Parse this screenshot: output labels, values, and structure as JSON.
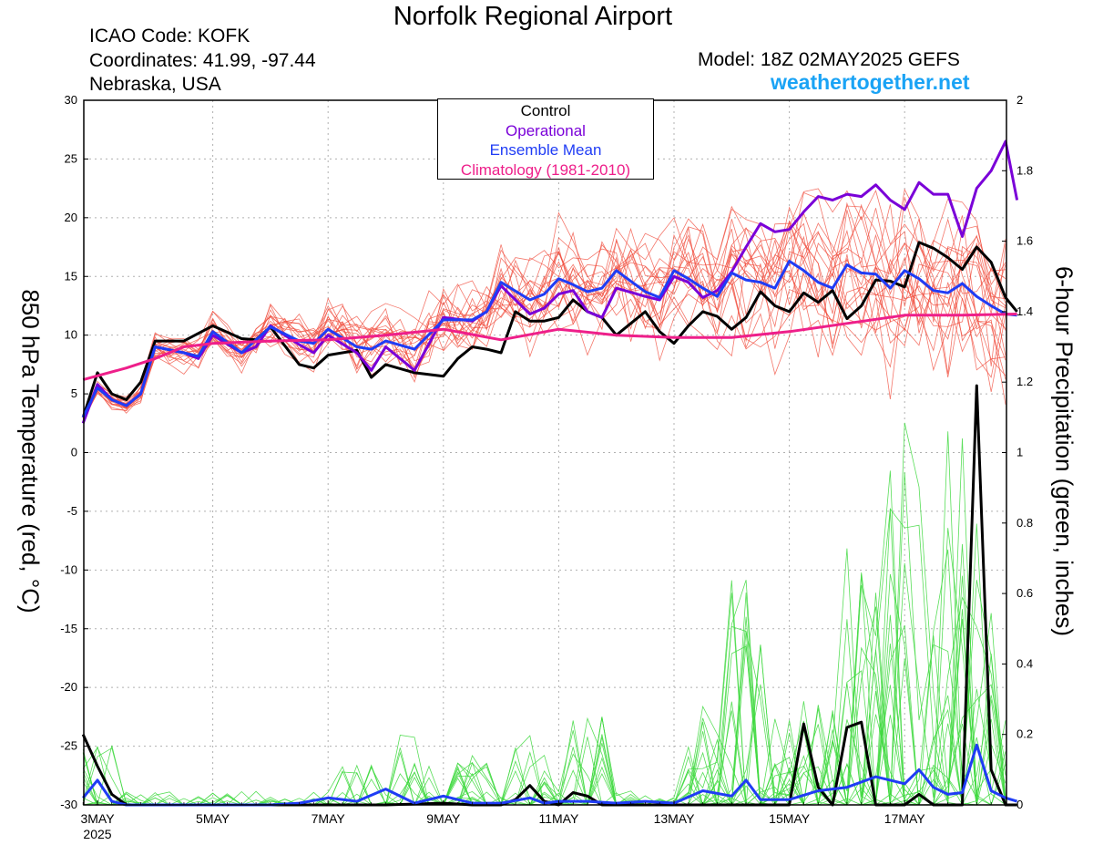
{
  "header": {
    "title": "Norfolk Regional Airport",
    "icao": "ICAO Code: KOFK",
    "coordinates": "Coordinates: 41.99, -97.44",
    "region": "Nebraska, USA",
    "model": "Model: 18Z 02MAY2025 GEFS",
    "site": "weathertogether.net"
  },
  "colors": {
    "control": "#000000",
    "operational": "#7a00d8",
    "ensemble_mean": "#1f3cf5",
    "climatology": "#ee1f8a",
    "members_temp": "#f04a3a",
    "members_precip": "#3cd83c",
    "site": "#1aa3f5"
  },
  "chart_data": {
    "type": "line",
    "title": "Norfolk Regional Airport",
    "ylabel": "850 hPa Temperature (red, °C)",
    "y2label": "6-hour Precipitation (green, inches)",
    "ylim": [
      -30,
      30
    ],
    "y2lim": [
      0,
      2
    ],
    "yticks": [
      "30",
      "25",
      "20",
      "15",
      "10",
      "5",
      "0",
      "-5",
      "-10",
      "-15",
      "-20",
      "-25",
      "-30"
    ],
    "y2ticks": [
      "2",
      "1.8",
      "1.6",
      "1.4",
      "1.2",
      "1",
      "0.8",
      "0.6",
      "0.4",
      "0.2",
      "0"
    ],
    "xlim": [
      0,
      15.95
    ],
    "xticks": [
      {
        "day": 0,
        "label": "3MAY",
        "sub": "2025"
      },
      {
        "day": 2,
        "label": "5MAY"
      },
      {
        "day": 4,
        "label": "7MAY"
      },
      {
        "day": 6,
        "label": "9MAY"
      },
      {
        "day": 8,
        "label": "11MAY"
      },
      {
        "day": 10,
        "label": "13MAY"
      },
      {
        "day": 12,
        "label": "15MAY"
      },
      {
        "day": 14,
        "label": "17MAY"
      }
    ],
    "grid": true,
    "legend": {
      "position": "top-center",
      "entries": [
        {
          "label": "Control",
          "color": "#000000"
        },
        {
          "label": "Operational",
          "color": "#7a00d8"
        },
        {
          "label": "Ensemble Mean",
          "color": "#1f3cf5"
        },
        {
          "label": "Climatology (1981-2010)",
          "color": "#ee1f8a"
        }
      ]
    },
    "temperature_series": [
      {
        "name": "Control",
        "points": [
          [
            -0.25,
            3
          ],
          [
            0,
            6.8
          ],
          [
            0.25,
            5
          ],
          [
            0.5,
            4.5
          ],
          [
            0.75,
            6
          ],
          [
            1,
            9.5
          ],
          [
            1.5,
            9.5
          ],
          [
            2,
            10.8
          ],
          [
            2.5,
            9.7
          ],
          [
            2.75,
            9.6
          ],
          [
            3,
            10.7
          ],
          [
            3.5,
            7.5
          ],
          [
            3.75,
            7.2
          ],
          [
            4,
            8.3
          ],
          [
            4.5,
            8.7
          ],
          [
            4.75,
            6.4
          ],
          [
            5,
            7.5
          ],
          [
            5.5,
            6.8
          ],
          [
            6,
            6.5
          ],
          [
            6.25,
            8
          ],
          [
            6.5,
            9
          ],
          [
            6.75,
            8.8
          ],
          [
            7,
            8.5
          ],
          [
            7.25,
            12
          ],
          [
            7.5,
            11.2
          ],
          [
            7.75,
            11.2
          ],
          [
            8,
            11.5
          ],
          [
            8.25,
            13
          ],
          [
            8.5,
            12
          ],
          [
            8.75,
            11.5
          ],
          [
            9,
            10
          ],
          [
            9.25,
            11
          ],
          [
            9.5,
            12
          ],
          [
            9.75,
            10.3
          ],
          [
            10,
            9.3
          ],
          [
            10.25,
            10.8
          ],
          [
            10.5,
            12
          ],
          [
            10.75,
            11.6
          ],
          [
            11,
            10.5
          ],
          [
            11.25,
            11.5
          ],
          [
            11.5,
            13.7
          ],
          [
            11.75,
            12.5
          ],
          [
            12,
            12
          ],
          [
            12.25,
            13.6
          ],
          [
            12.5,
            12.8
          ],
          [
            12.75,
            13.8
          ],
          [
            13,
            11.4
          ],
          [
            13.25,
            12.5
          ],
          [
            13.5,
            14.7
          ],
          [
            13.75,
            14.6
          ],
          [
            14,
            14.1
          ],
          [
            14.25,
            17.9
          ],
          [
            14.5,
            17.4
          ],
          [
            14.75,
            16.6
          ],
          [
            15,
            15.6
          ],
          [
            15.25,
            17.5
          ],
          [
            15.5,
            16.2
          ],
          [
            15.75,
            13.2
          ],
          [
            15.95,
            12
          ]
        ]
      },
      {
        "name": "Operational",
        "points": [
          [
            -0.25,
            2.5
          ],
          [
            0,
            5.8
          ],
          [
            0.25,
            4.5
          ],
          [
            0.5,
            4
          ],
          [
            0.75,
            5
          ],
          [
            1,
            9
          ],
          [
            1.5,
            8.5
          ],
          [
            1.75,
            8
          ],
          [
            2,
            10
          ],
          [
            2.5,
            8.5
          ],
          [
            2.75,
            9
          ],
          [
            3,
            10.8
          ],
          [
            3.5,
            9.2
          ],
          [
            3.75,
            8.5
          ],
          [
            4,
            10
          ],
          [
            4.5,
            8.5
          ],
          [
            4.75,
            7
          ],
          [
            5,
            9
          ],
          [
            5.5,
            7
          ],
          [
            6,
            11.5
          ],
          [
            6.5,
            11.2
          ],
          [
            6.75,
            12
          ],
          [
            7,
            14.2
          ],
          [
            7.5,
            11.8
          ],
          [
            7.75,
            12.3
          ],
          [
            8,
            13.5
          ],
          [
            8.25,
            13.8
          ],
          [
            8.5,
            12
          ],
          [
            8.75,
            11.5
          ],
          [
            9,
            14
          ],
          [
            9.5,
            13.3
          ],
          [
            9.75,
            13
          ],
          [
            10,
            15
          ],
          [
            10.25,
            14.5
          ],
          [
            10.5,
            13.2
          ],
          [
            10.75,
            13.8
          ],
          [
            11,
            15.4
          ],
          [
            11.25,
            17.5
          ],
          [
            11.5,
            19.5
          ],
          [
            11.75,
            18.8
          ],
          [
            12,
            19
          ],
          [
            12.25,
            20.5
          ],
          [
            12.5,
            21.8
          ],
          [
            12.75,
            21.5
          ],
          [
            13,
            22
          ],
          [
            13.25,
            21.8
          ],
          [
            13.5,
            22.8
          ],
          [
            13.75,
            21.5
          ],
          [
            14,
            20.7
          ],
          [
            14.25,
            23
          ],
          [
            14.5,
            22
          ],
          [
            14.75,
            22
          ],
          [
            15,
            18.4
          ],
          [
            15.25,
            22.5
          ],
          [
            15.5,
            24
          ],
          [
            15.75,
            26.5
          ],
          [
            15.95,
            21.5
          ]
        ]
      },
      {
        "name": "Ensemble Mean",
        "points": [
          [
            -0.25,
            3
          ],
          [
            0,
            5.5
          ],
          [
            0.25,
            4.5
          ],
          [
            0.5,
            4
          ],
          [
            0.75,
            5
          ],
          [
            1,
            9
          ],
          [
            1.5,
            8.5
          ],
          [
            1.75,
            8.2
          ],
          [
            2,
            10.3
          ],
          [
            2.5,
            8.5
          ],
          [
            3,
            10.7
          ],
          [
            3.5,
            9.5
          ],
          [
            3.75,
            9.3
          ],
          [
            4,
            10.5
          ],
          [
            4.5,
            9
          ],
          [
            4.75,
            8.8
          ],
          [
            5,
            9.5
          ],
          [
            5.5,
            8.8
          ],
          [
            6,
            11.3
          ],
          [
            6.5,
            11.3
          ],
          [
            6.75,
            12
          ],
          [
            7,
            14.5
          ],
          [
            7.5,
            13
          ],
          [
            7.75,
            13.5
          ],
          [
            8,
            14.8
          ],
          [
            8.25,
            14.3
          ],
          [
            8.5,
            13.7
          ],
          [
            8.75,
            14
          ],
          [
            9,
            15.5
          ],
          [
            9.25,
            14.6
          ],
          [
            9.5,
            13.7
          ],
          [
            9.75,
            13.2
          ],
          [
            10,
            15.5
          ],
          [
            10.25,
            14.8
          ],
          [
            10.5,
            14
          ],
          [
            10.75,
            13.3
          ],
          [
            11,
            15.3
          ],
          [
            11.25,
            14.7
          ],
          [
            11.5,
            14.5
          ],
          [
            11.75,
            14
          ],
          [
            12,
            16.3
          ],
          [
            12.25,
            15.5
          ],
          [
            12.5,
            14.5
          ],
          [
            12.75,
            14
          ],
          [
            13,
            16
          ],
          [
            13.25,
            15.3
          ],
          [
            13.5,
            15.2
          ],
          [
            13.75,
            14
          ],
          [
            14,
            15.5
          ],
          [
            14.25,
            14.8
          ],
          [
            14.5,
            13.8
          ],
          [
            14.75,
            13.6
          ],
          [
            15,
            14.4
          ],
          [
            15.25,
            13.3
          ],
          [
            15.5,
            12.5
          ],
          [
            15.75,
            11.8
          ],
          [
            15.95,
            11.7
          ]
        ]
      },
      {
        "name": "Climatology (1981-2010)",
        "points": [
          [
            -0.25,
            6.2
          ],
          [
            0.5,
            7.2
          ],
          [
            1,
            8
          ],
          [
            1.5,
            9
          ],
          [
            2,
            9.3
          ],
          [
            3,
            9.5
          ],
          [
            4,
            9.6
          ],
          [
            5,
            10
          ],
          [
            6,
            10.5
          ],
          [
            7,
            9.6
          ],
          [
            8,
            10.5
          ],
          [
            9,
            10
          ],
          [
            10,
            9.8
          ],
          [
            11,
            9.8
          ],
          [
            12,
            10.3
          ],
          [
            13,
            11
          ],
          [
            14,
            11.7
          ],
          [
            15,
            11.7
          ],
          [
            15.95,
            11.8
          ]
        ]
      }
    ],
    "precipitation_series": [
      {
        "name": "Control",
        "points": [
          [
            -0.25,
            0.2
          ],
          [
            0,
            0.11
          ],
          [
            0.25,
            0.03
          ],
          [
            0.5,
            0
          ],
          [
            3,
            0
          ],
          [
            4,
            0
          ],
          [
            5,
            0
          ],
          [
            6,
            0.005
          ],
          [
            6.5,
            0
          ],
          [
            7,
            0
          ],
          [
            7.25,
            0.015
          ],
          [
            7.5,
            0.055
          ],
          [
            7.75,
            0.01
          ],
          [
            8,
            0
          ],
          [
            8.25,
            0.035
          ],
          [
            8.5,
            0.025
          ],
          [
            8.75,
            0
          ],
          [
            10,
            0
          ],
          [
            11,
            0
          ],
          [
            11.5,
            0
          ],
          [
            12,
            0
          ],
          [
            12.25,
            0.23
          ],
          [
            12.5,
            0.05
          ],
          [
            12.75,
            0
          ],
          [
            13,
            0.22
          ],
          [
            13.25,
            0.235
          ],
          [
            13.5,
            0
          ],
          [
            14,
            0
          ],
          [
            14.25,
            0.03
          ],
          [
            14.5,
            0
          ],
          [
            14.75,
            0
          ],
          [
            15,
            0
          ],
          [
            15.25,
            1.19
          ],
          [
            15.5,
            0.1
          ],
          [
            15.75,
            0
          ],
          [
            15.95,
            0
          ]
        ]
      },
      {
        "name": "Ensemble Mean",
        "points": [
          [
            -0.25,
            0.02
          ],
          [
            0,
            0.07
          ],
          [
            0.25,
            0.01
          ],
          [
            0.5,
            0
          ],
          [
            3,
            0
          ],
          [
            3.5,
            0.005
          ],
          [
            4,
            0.02
          ],
          [
            4.5,
            0.01
          ],
          [
            5,
            0.045
          ],
          [
            5.5,
            0.005
          ],
          [
            6,
            0.025
          ],
          [
            6.5,
            0.005
          ],
          [
            7,
            0.005
          ],
          [
            7.5,
            0.02
          ],
          [
            7.75,
            0.005
          ],
          [
            8,
            0.01
          ],
          [
            8.5,
            0.01
          ],
          [
            9,
            0.005
          ],
          [
            9.5,
            0.01
          ],
          [
            10,
            0.005
          ],
          [
            10.5,
            0.04
          ],
          [
            11,
            0.025
          ],
          [
            11.25,
            0.07
          ],
          [
            11.5,
            0.015
          ],
          [
            12,
            0.015
          ],
          [
            12.5,
            0.04
          ],
          [
            13,
            0.05
          ],
          [
            13.5,
            0.08
          ],
          [
            14,
            0.06
          ],
          [
            14.25,
            0.1
          ],
          [
            14.5,
            0.05
          ],
          [
            14.75,
            0.03
          ],
          [
            15,
            0.035
          ],
          [
            15.25,
            0.17
          ],
          [
            15.5,
            0.04
          ],
          [
            15.75,
            0.02
          ],
          [
            15.95,
            0.01
          ]
        ]
      }
    ]
  }
}
